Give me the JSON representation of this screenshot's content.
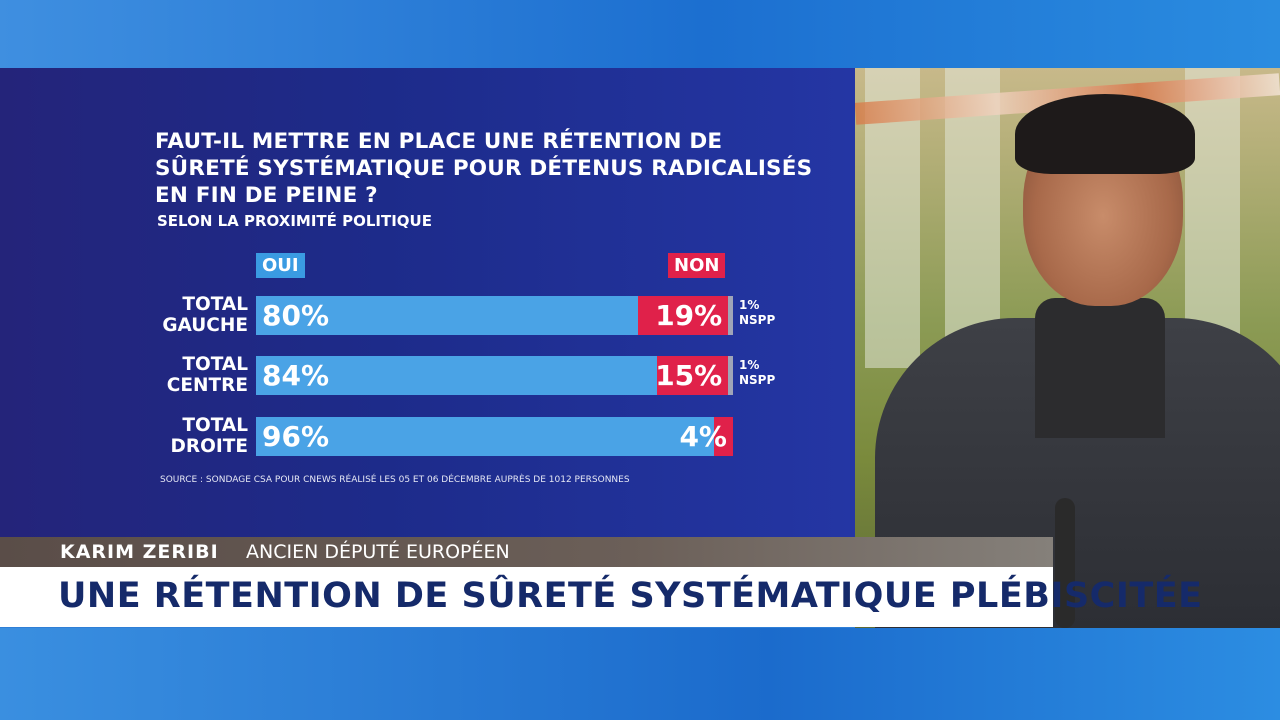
{
  "chart_data": {
    "type": "bar",
    "stacked": true,
    "orientation": "horizontal",
    "title": "FAUT-IL METTRE EN PLACE UNE RÉTENTION DE SÛRETÉ SYSTÉMATIQUE POUR DÉTENUS RADICALISÉS EN FIN DE PEINE ?",
    "subtitle": "SELON LA PROXIMITÉ POLITIQUE",
    "legend": [
      "OUI",
      "NON"
    ],
    "categories": [
      {
        "label": "TOTAL GAUCHE",
        "line1": "TOTAL",
        "line2": "GAUCHE"
      },
      {
        "label": "TOTAL CENTRE",
        "line1": "TOTAL",
        "line2": "CENTRE"
      },
      {
        "label": "TOTAL DROITE",
        "line1": "TOTAL",
        "line2": "DROITE"
      }
    ],
    "series": [
      {
        "name": "OUI",
        "values": [
          80,
          84,
          96
        ],
        "labels": [
          "80%",
          "84%",
          "96%"
        ],
        "color": "#4aa3e6"
      },
      {
        "name": "NON",
        "values": [
          19,
          15,
          4
        ],
        "labels": [
          "19%",
          "15%",
          "4%"
        ],
        "color": "#e0214a"
      },
      {
        "name": "NSPP",
        "values": [
          1,
          1,
          0
        ],
        "labels": [
          "1%",
          "1%",
          ""
        ],
        "color": "#9fa4b8"
      }
    ],
    "nspp_label": "NSPP",
    "source": "SOURCE : SONDAGE CSA POUR CNEWS RÉALISÉ LES 05 ET 06 DÉCEMBRE AUPRÈS DE 1012 PERSONNES"
  },
  "lower_third": {
    "name": "KARIM ZERIBI",
    "role": "ANCIEN DÉPUTÉ EUROPÉEN",
    "headline": "UNE RÉTENTION DE SÛRETÉ SYSTÉMATIQUE PLÉBISCITÉE"
  }
}
